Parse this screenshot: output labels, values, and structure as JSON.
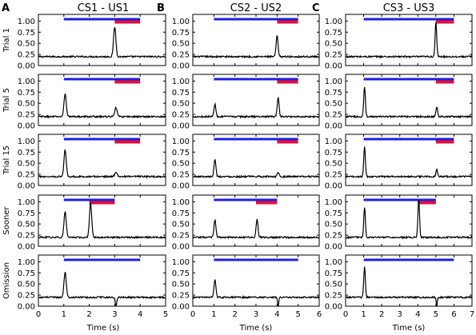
{
  "chart_data": {
    "type": "line",
    "panel_letters": [
      "A",
      "B",
      "C"
    ],
    "column_titles": [
      "CS1 - US1",
      "CS2 - US2",
      "CS3 - US3"
    ],
    "row_labels": [
      "Trial 1",
      "Trial 5",
      "Trial 15",
      "Sooner",
      "Omission"
    ],
    "xlabel": "Time (s)",
    "y_ticks": [
      "0.00",
      "0.25",
      "0.50",
      "0.75",
      "1.00"
    ],
    "ylim": [
      0,
      1.15
    ],
    "baseline": 0.2,
    "columns": [
      {
        "xlim": [
          0,
          5
        ],
        "x_ticks": [
          "0",
          "1",
          "2",
          "3",
          "4",
          "5"
        ],
        "rows": [
          {
            "cs_bar": [
              1,
              4
            ],
            "us_bar": [
              3,
              4
            ],
            "peaks": [
              {
                "t": 3.0,
                "height": 0.87
              }
            ],
            "dip": null
          },
          {
            "cs_bar": [
              1,
              4
            ],
            "us_bar": [
              3,
              4
            ],
            "peaks": [
              {
                "t": 1.05,
                "height": 0.71
              },
              {
                "t": 3.05,
                "height": 0.4
              }
            ],
            "dip": null
          },
          {
            "cs_bar": [
              1,
              4
            ],
            "us_bar": [
              3,
              4
            ],
            "peaks": [
              {
                "t": 1.05,
                "height": 0.8
              },
              {
                "t": 3.05,
                "height": 0.31
              }
            ],
            "dip": null
          },
          {
            "cs_bar": [
              1,
              3
            ],
            "us_bar": [
              2,
              3
            ],
            "peaks": [
              {
                "t": 1.05,
                "height": 0.77
              },
              {
                "t": 2.05,
                "height": 0.96
              }
            ],
            "dip": null
          },
          {
            "cs_bar": [
              1,
              4
            ],
            "us_bar": null,
            "peaks": [
              {
                "t": 1.05,
                "height": 0.77
              }
            ],
            "dip": {
              "t": 3.05,
              "depth": 0.0
            }
          }
        ]
      },
      {
        "xlim": [
          0,
          6
        ],
        "x_ticks": [
          "0",
          "1",
          "2",
          "3",
          "4",
          "5",
          "6"
        ],
        "rows": [
          {
            "cs_bar": [
              1,
              5
            ],
            "us_bar": [
              4,
              5
            ],
            "peaks": [
              {
                "t": 4.0,
                "height": 0.67
              }
            ],
            "dip": null
          },
          {
            "cs_bar": [
              1,
              5
            ],
            "us_bar": [
              4,
              5
            ],
            "peaks": [
              {
                "t": 1.05,
                "height": 0.48
              },
              {
                "t": 4.05,
                "height": 0.62
              }
            ],
            "dip": null
          },
          {
            "cs_bar": [
              1,
              5
            ],
            "us_bar": [
              4,
              5
            ],
            "peaks": [
              {
                "t": 1.05,
                "height": 0.6
              },
              {
                "t": 4.05,
                "height": 0.3
              }
            ],
            "dip": null
          },
          {
            "cs_bar": [
              1,
              4
            ],
            "us_bar": [
              3,
              4
            ],
            "peaks": [
              {
                "t": 1.05,
                "height": 0.6
              },
              {
                "t": 3.05,
                "height": 0.6
              }
            ],
            "dip": null
          },
          {
            "cs_bar": [
              1,
              5
            ],
            "us_bar": null,
            "peaks": [
              {
                "t": 1.05,
                "height": 0.6
              }
            ],
            "dip": {
              "t": 4.05,
              "depth": 0.0
            }
          }
        ]
      },
      {
        "xlim": [
          0,
          7
        ],
        "x_ticks": [
          "0",
          "1",
          "2",
          "3",
          "4",
          "5",
          "6",
          "7"
        ],
        "rows": [
          {
            "cs_bar": [
              1,
              6
            ],
            "us_bar": [
              5,
              6
            ],
            "peaks": [
              {
                "t": 5.0,
                "height": 0.97
              }
            ],
            "dip": null
          },
          {
            "cs_bar": [
              1,
              6
            ],
            "us_bar": [
              5,
              6
            ],
            "peaks": [
              {
                "t": 1.05,
                "height": 0.88
              },
              {
                "t": 5.05,
                "height": 0.43
              }
            ],
            "dip": null
          },
          {
            "cs_bar": [
              1,
              6
            ],
            "us_bar": [
              5,
              6
            ],
            "peaks": [
              {
                "t": 1.05,
                "height": 0.87
              },
              {
                "t": 5.05,
                "height": 0.36
              }
            ],
            "dip": null
          },
          {
            "cs_bar": [
              1,
              5
            ],
            "us_bar": [
              4,
              5
            ],
            "peaks": [
              {
                "t": 1.05,
                "height": 0.88
              },
              {
                "t": 4.05,
                "height": 1.05
              }
            ],
            "dip": null
          },
          {
            "cs_bar": [
              1,
              6
            ],
            "us_bar": null,
            "peaks": [
              {
                "t": 1.05,
                "height": 0.88
              }
            ],
            "dip": {
              "t": 5.05,
              "depth": 0.0
            }
          }
        ]
      }
    ],
    "colors": {
      "cs_bar": "#1f1fe0",
      "us_bar": "#e0103c",
      "trace": "#000000"
    }
  }
}
